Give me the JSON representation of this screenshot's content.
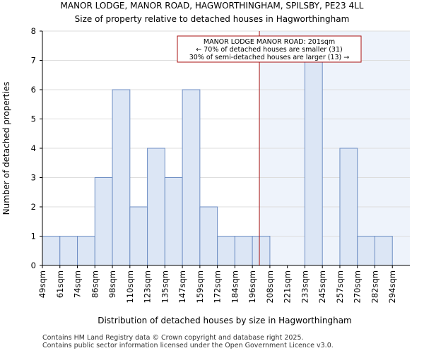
{
  "chart_data": {
    "type": "bar",
    "title": "MANOR LODGE, MANOR ROAD, HAGWORTHINGHAM, SPILSBY, PE23 4LL",
    "subtitle": "Size of property relative to detached houses in Hagworthingham",
    "xlabel": "Distribution of detached houses by size in Hagworthingham",
    "ylabel": "Number of detached properties",
    "categories": [
      "49sqm",
      "61sqm",
      "74sqm",
      "86sqm",
      "98sqm",
      "110sqm",
      "123sqm",
      "135sqm",
      "147sqm",
      "159sqm",
      "172sqm",
      "184sqm",
      "196sqm",
      "208sqm",
      "221sqm",
      "233sqm",
      "245sqm",
      "257sqm",
      "270sqm",
      "282sqm",
      "294sqm"
    ],
    "values": [
      1,
      1,
      1,
      3,
      6,
      2,
      4,
      3,
      6,
      2,
      1,
      1,
      1,
      0,
      0,
      7,
      0,
      4,
      1,
      1,
      0
    ],
    "ylim": [
      0,
      8
    ],
    "yticks": [
      0,
      1,
      2,
      3,
      4,
      5,
      6,
      7,
      8
    ],
    "property_marker_bin": 12.4,
    "highlight_from_bin": 12.4,
    "annotation": {
      "line1": "MANOR LODGE MANOR ROAD: 201sqm",
      "line2": "← 70% of detached houses are smaller (31)",
      "line3": "30% of semi-detached houses are larger (13) →"
    },
    "colors": {
      "bar_fill": "#dce6f5",
      "bar_stroke": "#6f8fc4",
      "highlight_bg": "#eef3fb",
      "marker": "#aa1111",
      "grid": "#dddddd"
    }
  },
  "footer": {
    "line1": "Contains HM Land Registry data © Crown copyright and database right 2025.",
    "line2": "Contains public sector information licensed under the Open Government Licence v3.0."
  }
}
